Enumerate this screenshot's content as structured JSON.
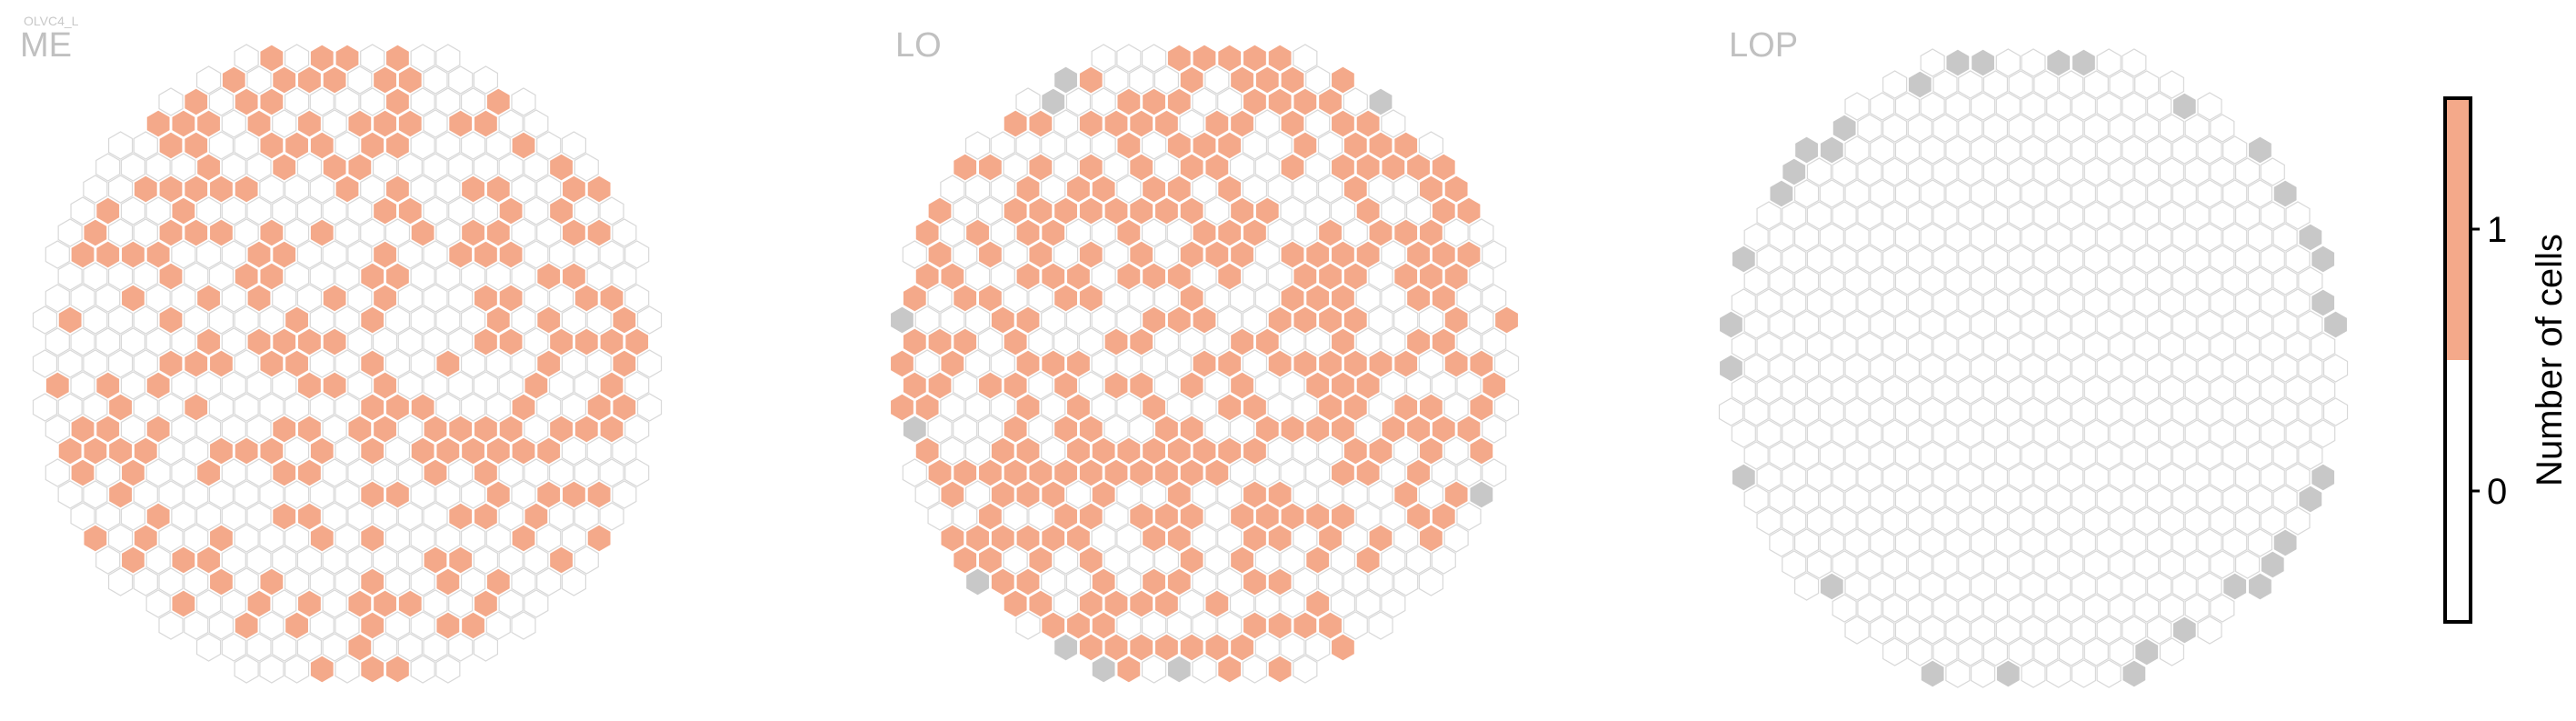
{
  "figure": {
    "cell_type": "OLVC4_L"
  },
  "colors": {
    "filled": "#f4a98a",
    "empty_stroke": "#d8d8d8",
    "missing": "#c8c8c8",
    "region_label": "#c0c0c0",
    "colorbar_top": "#f4a98a",
    "colorbar_bottom": "#ffffff"
  },
  "chart_data": [
    {
      "type": "heatmap",
      "panel": "ME",
      "title": "ME",
      "subtitle": "OLVC4_L",
      "description_of_values": "hexagonal column map; value per column = number of cells (0 or 1)",
      "hex_radius": 16,
      "filled_fraction": 0.42,
      "missing_boundary_fraction": 0.0,
      "seed": 11
    },
    {
      "type": "heatmap",
      "panel": "LO",
      "title": "LO",
      "hex_radius": 16,
      "filled_fraction": 0.55,
      "missing_boundary_fraction": 0.12,
      "seed": 23
    },
    {
      "type": "heatmap",
      "panel": "LOP",
      "title": "LOP",
      "hex_radius": 16,
      "filled_fraction": 0.0,
      "missing_boundary_fraction": 0.45,
      "seed": 37
    }
  ],
  "colorbar": {
    "label": "Number of cells",
    "ticks": [
      "1",
      "0"
    ],
    "range": [
      -0.5,
      1.5
    ]
  }
}
